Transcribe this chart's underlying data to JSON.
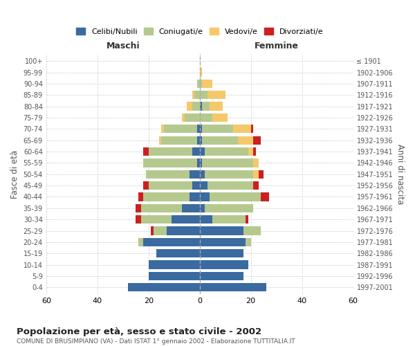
{
  "age_groups": [
    "0-4",
    "5-9",
    "10-14",
    "15-19",
    "20-24",
    "25-29",
    "30-34",
    "35-39",
    "40-44",
    "45-49",
    "50-54",
    "55-59",
    "60-64",
    "65-69",
    "70-74",
    "75-79",
    "80-84",
    "85-89",
    "90-94",
    "95-99",
    "100+"
  ],
  "birth_years": [
    "1997-2001",
    "1992-1996",
    "1987-1991",
    "1982-1986",
    "1977-1981",
    "1972-1976",
    "1967-1971",
    "1962-1966",
    "1957-1961",
    "1952-1956",
    "1947-1951",
    "1942-1946",
    "1937-1941",
    "1932-1936",
    "1927-1931",
    "1922-1926",
    "1917-1921",
    "1912-1916",
    "1907-1911",
    "1902-1906",
    "≤ 1901"
  ],
  "males": {
    "celibi": [
      28,
      20,
      20,
      17,
      22,
      13,
      11,
      7,
      4,
      3,
      4,
      1,
      3,
      1,
      1,
      0,
      0,
      0,
      0,
      0,
      0
    ],
    "coniugati": [
      0,
      0,
      0,
      0,
      2,
      5,
      12,
      16,
      18,
      17,
      17,
      21,
      17,
      14,
      13,
      6,
      3,
      2,
      1,
      0,
      0
    ],
    "vedovi": [
      0,
      0,
      0,
      0,
      0,
      0,
      0,
      0,
      0,
      0,
      0,
      0,
      0,
      1,
      1,
      1,
      2,
      1,
      0,
      0,
      0
    ],
    "divorziati": [
      0,
      0,
      0,
      0,
      0,
      1,
      2,
      2,
      2,
      2,
      0,
      0,
      2,
      0,
      0,
      0,
      0,
      0,
      0,
      0,
      0
    ]
  },
  "females": {
    "nubili": [
      26,
      17,
      19,
      17,
      18,
      17,
      5,
      2,
      4,
      3,
      2,
      1,
      2,
      1,
      1,
      0,
      1,
      0,
      0,
      0,
      0
    ],
    "coniugate": [
      0,
      0,
      0,
      0,
      2,
      7,
      13,
      19,
      20,
      18,
      19,
      20,
      17,
      14,
      12,
      5,
      3,
      3,
      1,
      0,
      0
    ],
    "vedove": [
      0,
      0,
      0,
      0,
      0,
      0,
      0,
      0,
      0,
      0,
      2,
      2,
      2,
      6,
      7,
      6,
      5,
      7,
      4,
      1,
      0
    ],
    "divorziate": [
      0,
      0,
      0,
      0,
      0,
      0,
      1,
      0,
      3,
      2,
      2,
      0,
      1,
      3,
      1,
      0,
      0,
      0,
      0,
      0,
      0
    ]
  },
  "colors": {
    "celibi": "#3b6aa0",
    "coniugati": "#b5c98e",
    "vedovi": "#f5c96a",
    "divorziati": "#cc2020"
  },
  "xlim": 60,
  "title": "Popolazione per età, sesso e stato civile - 2002",
  "subtitle": "COMUNE DI BRUSIMPIANO (VA) - Dati ISTAT 1° gennaio 2002 - Elaborazione TUTTITALIA.IT",
  "ylabel_left": "Fasce di età",
  "ylabel_right": "Anni di nascita",
  "legend_labels": [
    "Celibi/Nubili",
    "Coniugati/e",
    "Vedovi/e",
    "Divorziati/e"
  ],
  "maschi_label": "Maschi",
  "femmine_label": "Femmine",
  "bg_color": "#ffffff",
  "grid_color": "#cccccc"
}
